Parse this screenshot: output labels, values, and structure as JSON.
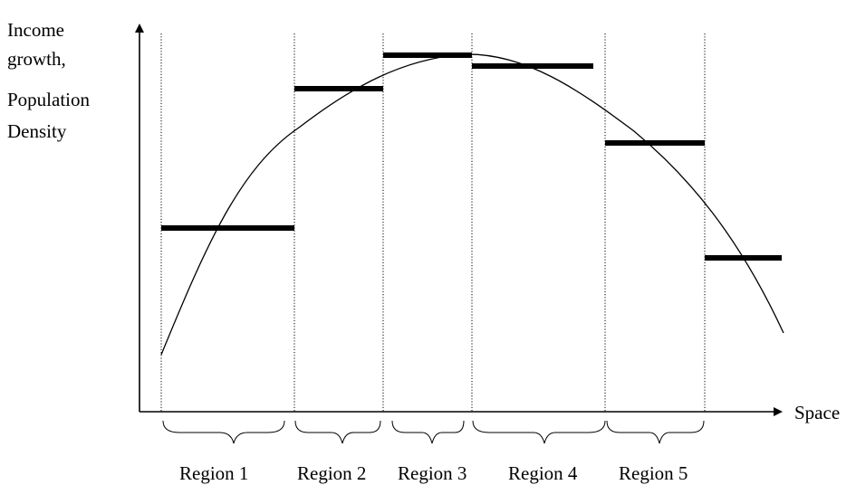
{
  "y_axis_label": [
    "Income",
    "growth,",
    "Population",
    "Density"
  ],
  "x_axis_label": "Space",
  "regions": [
    {
      "label": "Region 1",
      "level": 0.515
    },
    {
      "label": "Region 2",
      "level": 0.905
    },
    {
      "label": "Region 3",
      "level": 0.997
    },
    {
      "label": "Region 4",
      "level": 0.967
    },
    {
      "label": "Region 5",
      "level": 0.752
    }
  ],
  "trailing_segment_level": 0.43,
  "curve": "inverted-U (rises, peaks near Region 3 boundary, then falls)"
}
